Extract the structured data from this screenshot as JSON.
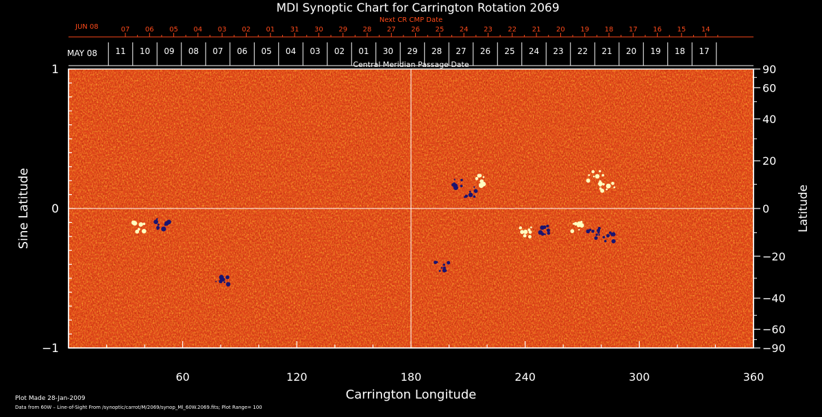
{
  "chart_data": {
    "type": "heatmap",
    "title": "MDI Synoptic Chart for Carrington Rotation 2069",
    "xlabel": "Carrington Longitude",
    "ylabel": "Sine Latitude",
    "ylabel_right": "Latitude",
    "xlim": [
      0,
      360
    ],
    "ylim": [
      -1,
      1
    ],
    "x_ticks": [
      "60",
      "120",
      "180",
      "240",
      "300",
      "360"
    ],
    "y_ticks_left": [
      "1",
      "0",
      "−1"
    ],
    "y_ticks_right": [
      "90",
      "60",
      "40",
      "20",
      "0",
      "−20",
      "−40",
      "−60",
      "−90"
    ],
    "colors": {
      "background": "#e0461a",
      "positive": "#ffffc0",
      "negative": "#1a1470",
      "frame": "#ffffff"
    },
    "grid": "crosshair at 180° longitude and 0 latitude",
    "top_axis_red": {
      "caption": "Next CR CMP Date",
      "start_label": "JUN 08",
      "days": [
        "07",
        "06",
        "05",
        "04",
        "03",
        "02",
        "01",
        "31",
        "30",
        "29",
        "28",
        "27",
        "26",
        "25",
        "24",
        "23",
        "22",
        "21",
        "20",
        "19",
        "18",
        "17",
        "16",
        "15",
        "14"
      ]
    },
    "top_axis_white": {
      "caption": "Central Meridian Passage Date",
      "start_label": "MAY 08",
      "days": [
        "11",
        "10",
        "09",
        "08",
        "07",
        "06",
        "05",
        "04",
        "03",
        "02",
        "01",
        "30",
        "29",
        "28",
        "27",
        "26",
        "25",
        "24",
        "23",
        "22",
        "21",
        "20",
        "19",
        "18",
        "17"
      ]
    },
    "active_regions": [
      {
        "lon": 215,
        "sinlat": 0.2,
        "polarity": "positive"
      },
      {
        "lon": 212,
        "sinlat": 0.12,
        "polarity": "negative"
      },
      {
        "lon": 203,
        "sinlat": 0.17,
        "polarity": "negative"
      },
      {
        "lon": 240,
        "sinlat": -0.17,
        "polarity": "positive"
      },
      {
        "lon": 250,
        "sinlat": -0.16,
        "polarity": "negative"
      },
      {
        "lon": 276,
        "sinlat": -0.18,
        "polarity": "negative"
      },
      {
        "lon": 284,
        "sinlat": -0.2,
        "polarity": "negative"
      },
      {
        "lon": 266,
        "sinlat": -0.13,
        "polarity": "positive"
      },
      {
        "lon": 277,
        "sinlat": 0.23,
        "polarity": "positive"
      },
      {
        "lon": 283,
        "sinlat": 0.16,
        "polarity": "positive"
      },
      {
        "lon": 196,
        "sinlat": -0.42,
        "polarity": "negative"
      },
      {
        "lon": 81,
        "sinlat": -0.51,
        "polarity": "negative"
      },
      {
        "lon": 49,
        "sinlat": -0.11,
        "polarity": "negative"
      },
      {
        "lon": 38,
        "sinlat": -0.13,
        "polarity": "positive"
      }
    ]
  },
  "footer": {
    "plot_made": "Plot Made 28-Jan-2009",
    "source": "Data from 60W – Line-of-Sight From /synoptic/carrot/M/2069/synop_Ml_60W.2069.fits; Plot Range=  100"
  }
}
